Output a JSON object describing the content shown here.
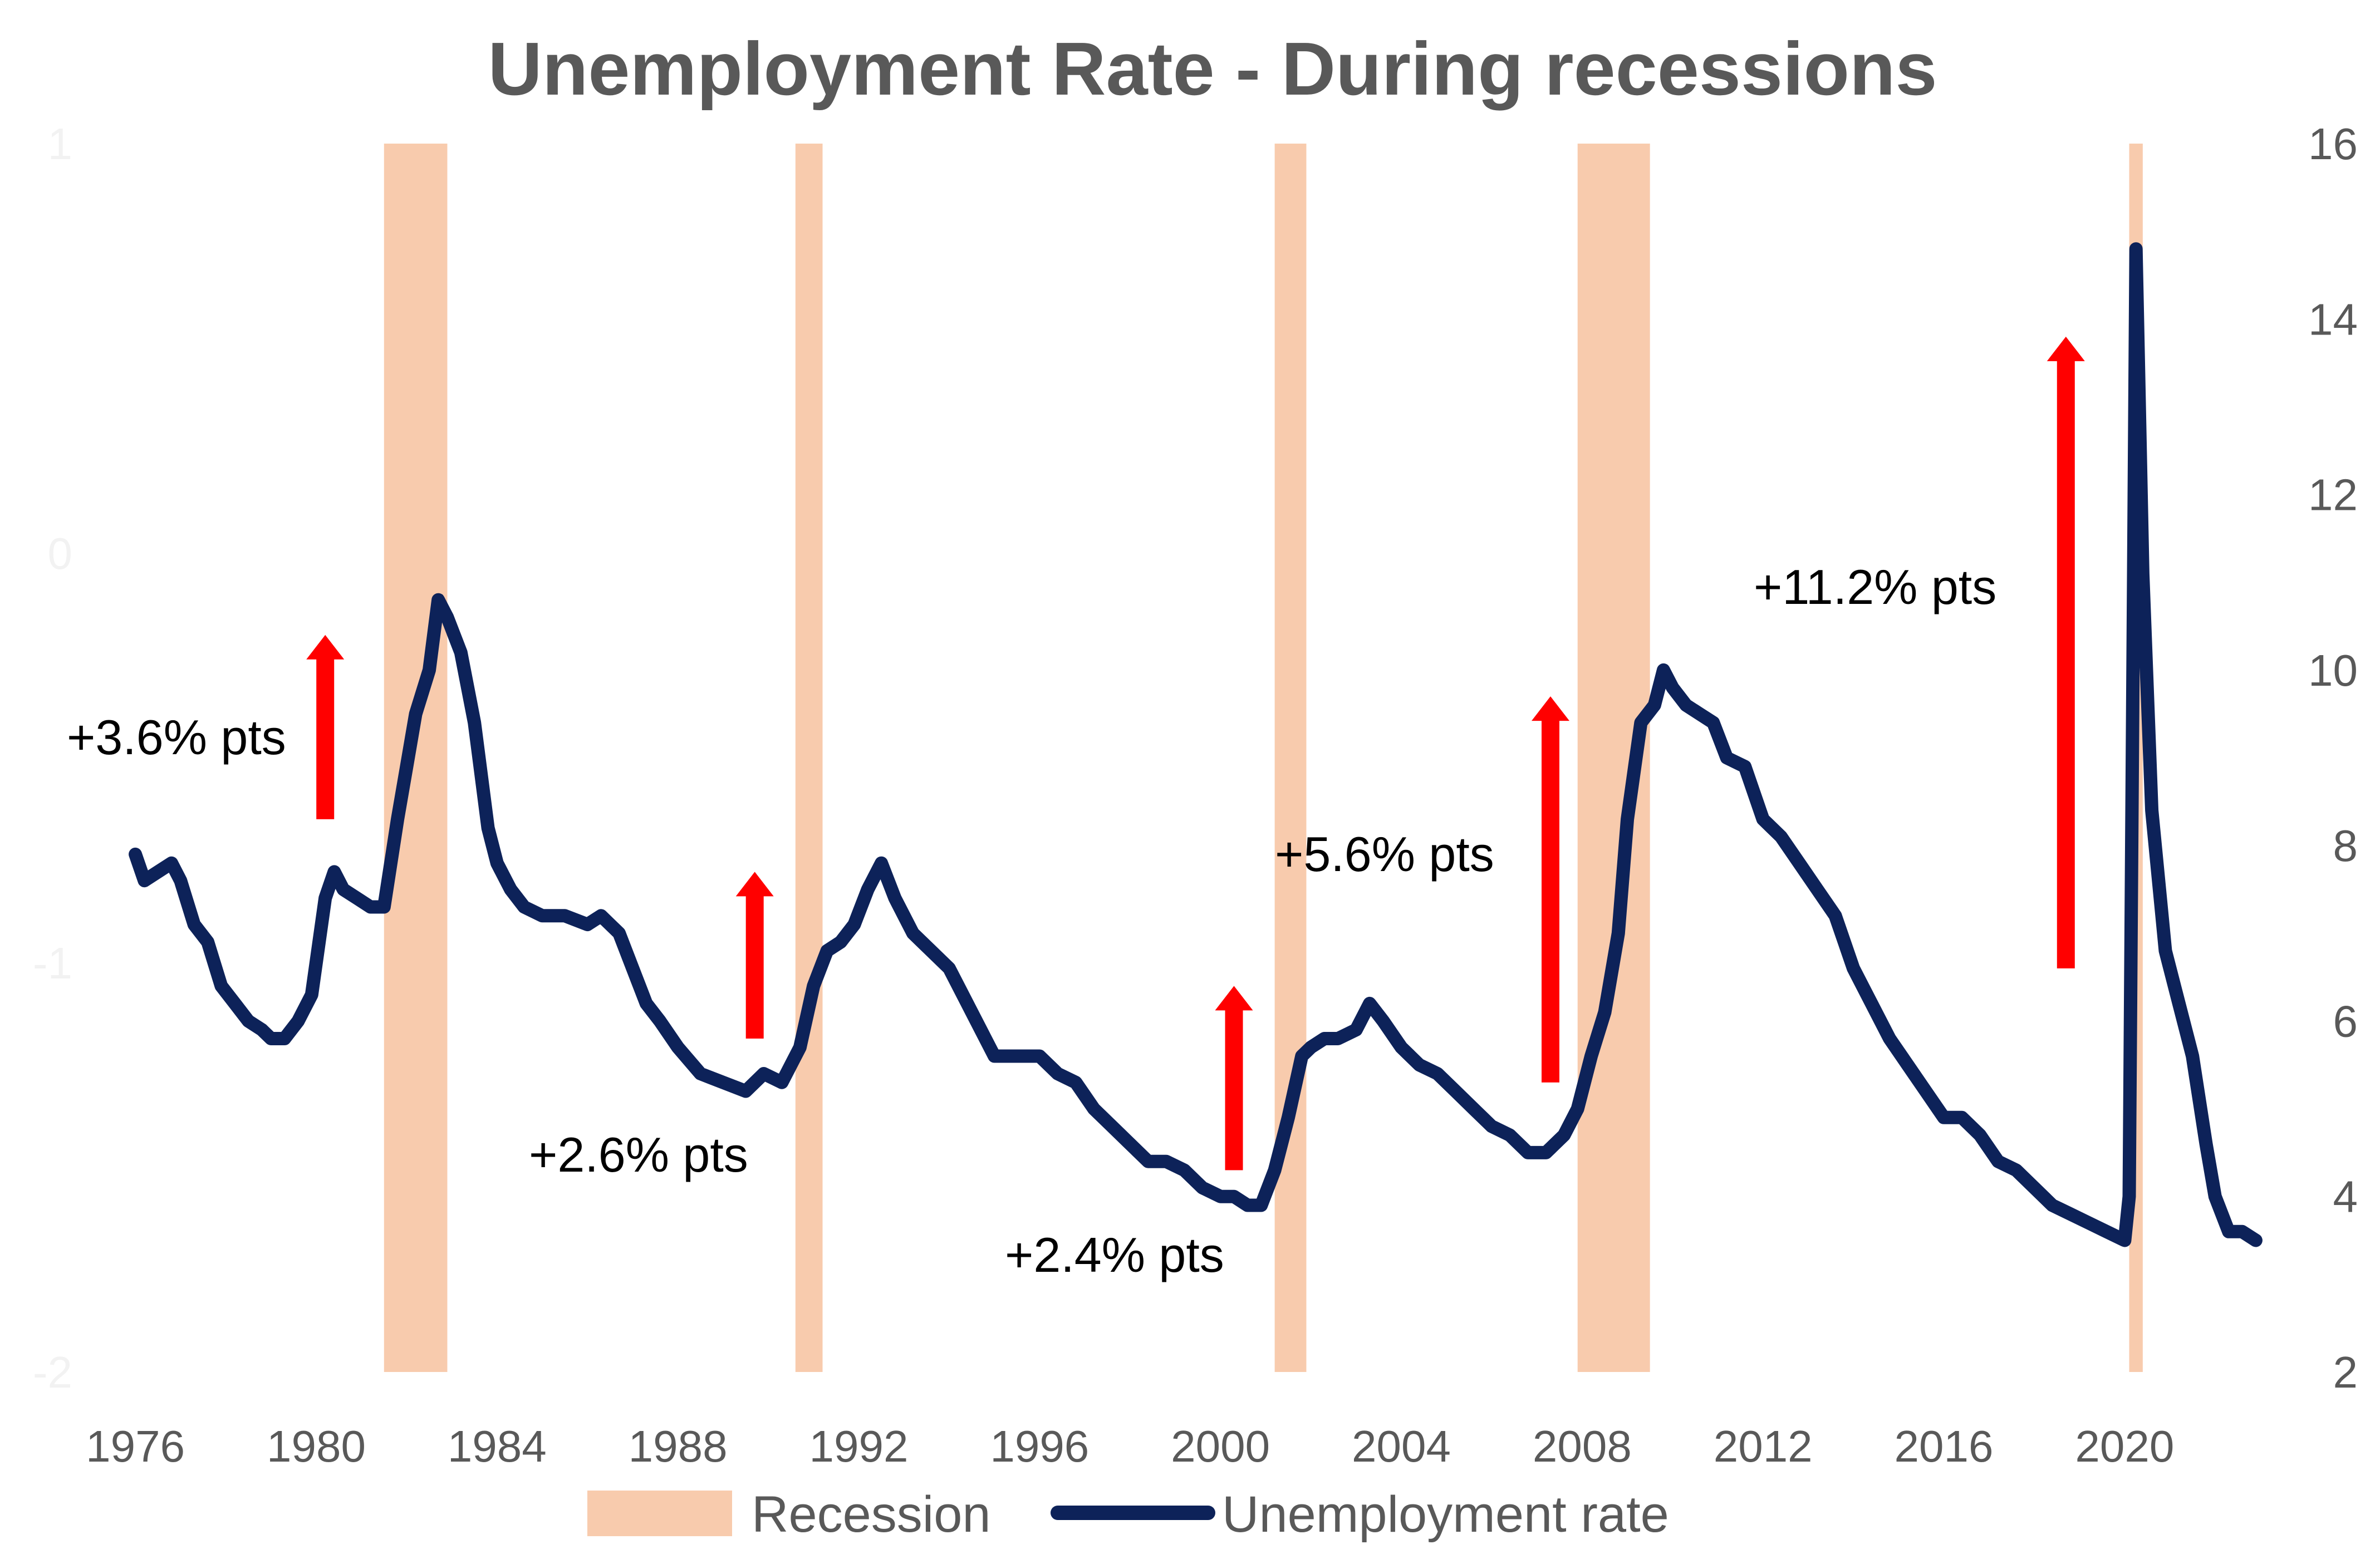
{
  "chart_data": {
    "type": "line",
    "title": "Unemployment Rate - During recessions",
    "x_ticks": [
      "1976",
      "1980",
      "1984",
      "1988",
      "1992",
      "1996",
      "2000",
      "2004",
      "2008",
      "2012",
      "2016",
      "2020"
    ],
    "xlim": [
      1975.9,
      2023.0
    ],
    "y_right": {
      "ticks": [
        "2",
        "4",
        "6",
        "8",
        "10",
        "12",
        "14",
        "16"
      ],
      "ylim": [
        2,
        16
      ]
    },
    "y_left_ticks": [
      "1",
      "0",
      "-1",
      "-2"
    ],
    "legend": {
      "position": "bottom",
      "entries": [
        "Recession",
        "Unemployment rate"
      ]
    },
    "colors": {
      "recession": "#f8cbad",
      "line": "#0d2259",
      "arrow": "#ff0000",
      "title": "#595959",
      "ticks": "#595959"
    },
    "recessions": [
      {
        "start": 1981.5,
        "end": 1982.9
      },
      {
        "start": 1990.6,
        "end": 1991.2
      },
      {
        "start": 2001.2,
        "end": 2001.9
      },
      {
        "start": 2007.9,
        "end": 2009.5
      },
      {
        "start": 2020.1,
        "end": 2020.4
      }
    ],
    "series": [
      {
        "name": "Unemployment rate",
        "x": [
          1976.0,
          1976.2,
          1976.5,
          1976.8,
          1977.0,
          1977.3,
          1977.6,
          1977.9,
          1978.2,
          1978.5,
          1978.8,
          1979.0,
          1979.3,
          1979.6,
          1979.9,
          1980.2,
          1980.4,
          1980.6,
          1980.9,
          1981.2,
          1981.5,
          1981.8,
          1982.0,
          1982.2,
          1982.5,
          1982.7,
          1982.9,
          1983.2,
          1983.5,
          1983.8,
          1984.0,
          1984.3,
          1984.6,
          1985.0,
          1985.5,
          1986.0,
          1986.3,
          1986.7,
          1987.0,
          1987.3,
          1987.6,
          1988.0,
          1988.5,
          1989.0,
          1989.5,
          1989.9,
          1990.3,
          1990.7,
          1991.0,
          1991.3,
          1991.6,
          1991.9,
          1992.2,
          1992.5,
          1992.8,
          1993.2,
          1993.6,
          1994.0,
          1994.3,
          1994.6,
          1995.0,
          1995.5,
          1996.0,
          1996.4,
          1996.8,
          1997.2,
          1997.6,
          1998.0,
          1998.4,
          1998.8,
          1999.2,
          1999.6,
          2000.0,
          2000.3,
          2000.6,
          2000.9,
          2001.2,
          2001.5,
          2001.8,
          2002.0,
          2002.3,
          2002.6,
          2003.0,
          2003.3,
          2003.6,
          2004.0,
          2004.4,
          2004.8,
          2005.2,
          2005.6,
          2006.0,
          2006.4,
          2006.8,
          2007.2,
          2007.6,
          2007.9,
          2008.2,
          2008.5,
          2008.8,
          2009.0,
          2009.3,
          2009.6,
          2009.8,
          2010.0,
          2010.3,
          2010.6,
          2010.9,
          2011.2,
          2011.6,
          2012.0,
          2012.4,
          2012.8,
          2013.2,
          2013.6,
          2014.0,
          2014.4,
          2014.8,
          2015.2,
          2015.6,
          2016.0,
          2016.4,
          2016.8,
          2017.2,
          2017.6,
          2018.0,
          2018.4,
          2018.8,
          2019.2,
          2019.6,
          2020.0,
          2020.1,
          2020.25,
          2020.4,
          2020.6,
          2020.9,
          2021.2,
          2021.5,
          2021.8,
          2022.0,
          2022.3,
          2022.6,
          2022.9
        ],
        "values": [
          7.9,
          7.6,
          7.7,
          7.8,
          7.6,
          7.1,
          6.9,
          6.4,
          6.2,
          6.0,
          5.9,
          5.8,
          5.8,
          6.0,
          6.3,
          7.4,
          7.7,
          7.5,
          7.4,
          7.3,
          7.3,
          8.3,
          8.9,
          9.5,
          10.0,
          10.8,
          10.6,
          10.2,
          9.4,
          8.2,
          7.8,
          7.5,
          7.3,
          7.2,
          7.2,
          7.1,
          7.2,
          7.0,
          6.6,
          6.2,
          6.0,
          5.7,
          5.4,
          5.3,
          5.2,
          5.4,
          5.3,
          5.7,
          6.4,
          6.8,
          6.9,
          7.1,
          7.5,
          7.8,
          7.4,
          7.0,
          6.8,
          6.6,
          6.3,
          6.0,
          5.6,
          5.6,
          5.6,
          5.4,
          5.3,
          5.0,
          4.8,
          4.6,
          4.4,
          4.4,
          4.3,
          4.1,
          4.0,
          4.0,
          3.9,
          3.9,
          4.3,
          4.9,
          5.6,
          5.7,
          5.8,
          5.8,
          5.9,
          6.2,
          6.0,
          5.7,
          5.5,
          5.4,
          5.2,
          5.0,
          4.8,
          4.7,
          4.5,
          4.5,
          4.7,
          5.0,
          5.6,
          6.1,
          7.0,
          8.3,
          9.4,
          9.6,
          10.0,
          9.8,
          9.6,
          9.5,
          9.4,
          9.0,
          8.9,
          8.3,
          8.1,
          7.8,
          7.5,
          7.2,
          6.6,
          6.2,
          5.8,
          5.5,
          5.2,
          4.9,
          4.9,
          4.7,
          4.4,
          4.3,
          4.1,
          3.9,
          3.8,
          3.7,
          3.6,
          3.5,
          4.0,
          14.8,
          11.1,
          8.4,
          6.8,
          6.2,
          5.6,
          4.6,
          4.0,
          3.6,
          3.6,
          3.5
        ]
      }
    ],
    "annotations": [
      {
        "label": "+3.6% pts",
        "arrow_x": 1980.2,
        "arrow_from": 8.3,
        "arrow_to": 10.4
      },
      {
        "label": "+2.6% pts",
        "arrow_x": 1989.7,
        "arrow_from": 5.8,
        "arrow_to": 7.7
      },
      {
        "label": "+2.4% pts",
        "arrow_x": 2000.3,
        "arrow_from": 4.3,
        "arrow_to": 6.4
      },
      {
        "label": "+5.6% pts",
        "arrow_x": 2007.3,
        "arrow_from": 5.3,
        "arrow_to": 9.7
      },
      {
        "label": "+11.2% pts",
        "arrow_x": 2018.7,
        "arrow_from": 6.6,
        "arrow_to": 13.8
      }
    ]
  }
}
